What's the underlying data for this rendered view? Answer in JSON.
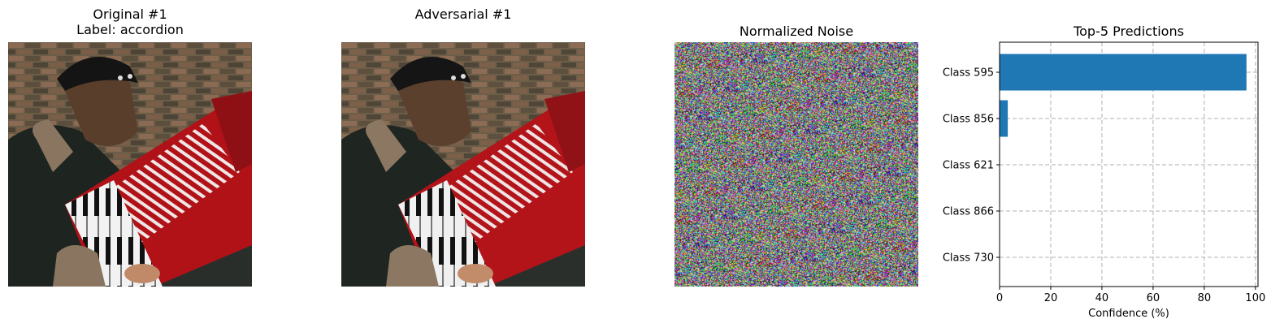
{
  "panels": {
    "original": {
      "title_line1": "Original #1",
      "title_line2": "Label: accordion"
    },
    "adversarial": {
      "title": "Adversarial #1"
    },
    "noise": {
      "title": "Normalized Noise"
    },
    "predictions": {
      "title": "Top-5 Predictions"
    }
  },
  "chart_data": {
    "type": "bar",
    "orientation": "horizontal",
    "title": "Top-5 Predictions",
    "xlabel": "Confidence (%)",
    "ylabel": "",
    "categories": [
      "Class 595",
      "Class 856",
      "Class 621",
      "Class 866",
      "Class 730"
    ],
    "values": [
      96.5,
      3.2,
      0.1,
      0.05,
      0.03
    ],
    "xlim": [
      0,
      101
    ],
    "xticks": [
      0,
      20,
      40,
      60,
      80,
      100
    ],
    "grid": true,
    "bar_color": "#1f77b4"
  },
  "colors": {
    "accordion_red": "#b01218",
    "wall_brown": "#6b5a45",
    "jacket_dark": "#1e2420"
  }
}
